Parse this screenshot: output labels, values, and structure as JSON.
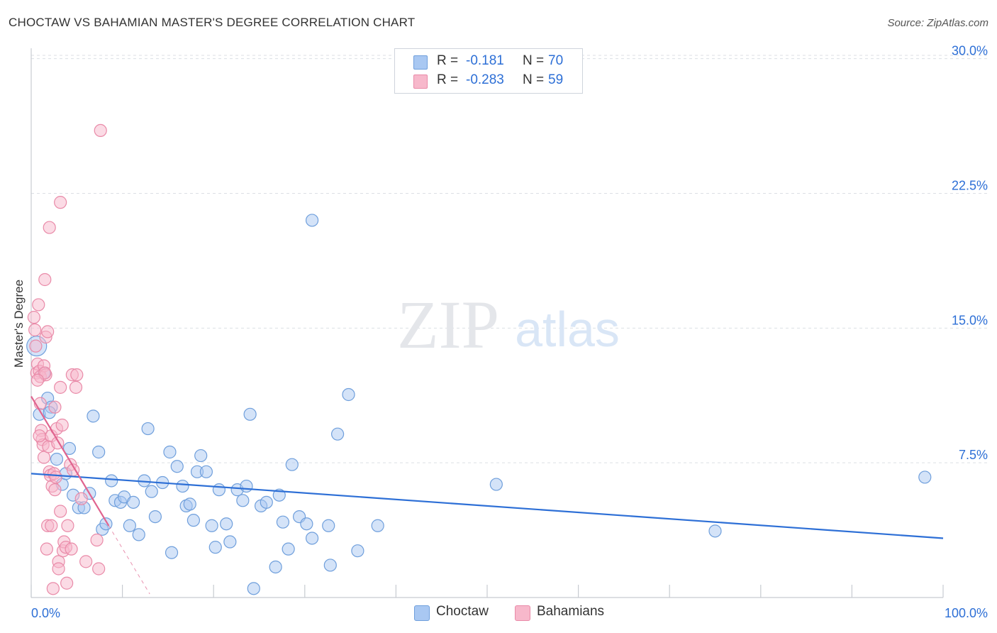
{
  "header": {
    "title": "CHOCTAW VS BAHAMIAN MASTER'S DEGREE CORRELATION CHART",
    "source": "Source: ZipAtlas.com"
  },
  "legend": {
    "series": [
      {
        "name": "Choctaw",
        "r_label": "R =",
        "r_value": "-0.181",
        "n_label": "N =",
        "n_value": "70"
      },
      {
        "name": "Bahamians",
        "r_label": "R =",
        "r_value": "-0.283",
        "n_label": "N =",
        "n_value": "59"
      }
    ]
  },
  "watermark": {
    "zip": "ZIP",
    "atlas": "atlas"
  },
  "colors": {
    "choctaw_fill": "#a9c8f2",
    "choctaw_stroke": "#6f9fdc",
    "choctaw_line": "#2d6fd6",
    "bahamians_fill": "#f7b8cb",
    "bahamians_stroke": "#e98aa8",
    "bahamians_line": "#e0648f",
    "axis_label": "#2d6fd6",
    "grid": "#dcdfe4"
  },
  "chart_data": {
    "type": "scatter",
    "title": "CHOCTAW VS BAHAMIAN MASTER'S DEGREE CORRELATION CHART",
    "xlabel": "",
    "ylabel": "Master's Degree",
    "xlim": [
      0,
      100
    ],
    "ylim": [
      0,
      30.5
    ],
    "x_tick_labels": [
      {
        "value": 0,
        "label": "0.0%"
      },
      {
        "value": 100,
        "label": "100.0%"
      }
    ],
    "y_tick_labels": [
      {
        "value": 7.5,
        "label": "7.5%"
      },
      {
        "value": 15,
        "label": "15.0%"
      },
      {
        "value": 22.5,
        "label": "22.5%"
      },
      {
        "value": 30,
        "label": "30.0%"
      }
    ],
    "grid": true,
    "legend_position": "top-center",
    "series": [
      {
        "name": "Choctaw",
        "trend": {
          "x": [
            0,
            100
          ],
          "y": [
            6.9,
            3.3
          ]
        },
        "points": [
          [
            0.6,
            14.0
          ],
          [
            0.9,
            10.2
          ],
          [
            1.8,
            11.1
          ],
          [
            2.2,
            10.6
          ],
          [
            2.8,
            7.7
          ],
          [
            3.4,
            6.3
          ],
          [
            3.8,
            6.9
          ],
          [
            4.2,
            8.3
          ],
          [
            4.6,
            5.7
          ],
          [
            5.2,
            5.0
          ],
          [
            5.8,
            5.0
          ],
          [
            6.4,
            5.8
          ],
          [
            6.8,
            10.1
          ],
          [
            7.4,
            8.1
          ],
          [
            7.8,
            3.8
          ],
          [
            8.2,
            4.1
          ],
          [
            8.8,
            6.5
          ],
          [
            9.2,
            5.4
          ],
          [
            9.8,
            5.3
          ],
          [
            10.2,
            5.6
          ],
          [
            10.8,
            4.0
          ],
          [
            11.2,
            5.3
          ],
          [
            11.8,
            3.5
          ],
          [
            12.4,
            6.5
          ],
          [
            12.8,
            9.4
          ],
          [
            13.2,
            5.9
          ],
          [
            13.6,
            4.5
          ],
          [
            14.4,
            6.4
          ],
          [
            15.2,
            8.1
          ],
          [
            15.4,
            2.5
          ],
          [
            16.0,
            7.3
          ],
          [
            16.6,
            6.2
          ],
          [
            17.0,
            5.1
          ],
          [
            17.4,
            5.2
          ],
          [
            17.8,
            4.3
          ],
          [
            18.2,
            7.0
          ],
          [
            18.6,
            7.9
          ],
          [
            19.2,
            7.0
          ],
          [
            19.8,
            4.0
          ],
          [
            20.2,
            2.8
          ],
          [
            20.6,
            6.0
          ],
          [
            21.4,
            4.1
          ],
          [
            21.8,
            3.1
          ],
          [
            22.6,
            6.0
          ],
          [
            23.2,
            5.4
          ],
          [
            23.6,
            6.2
          ],
          [
            24.0,
            10.2
          ],
          [
            24.4,
            0.5
          ],
          [
            25.2,
            5.1
          ],
          [
            25.8,
            5.3
          ],
          [
            26.8,
            1.7
          ],
          [
            27.2,
            5.7
          ],
          [
            27.6,
            4.2
          ],
          [
            28.2,
            2.7
          ],
          [
            28.6,
            7.4
          ],
          [
            29.4,
            4.5
          ],
          [
            30.2,
            4.1
          ],
          [
            30.8,
            3.3
          ],
          [
            30.8,
            21.0
          ],
          [
            32.6,
            4.0
          ],
          [
            32.8,
            1.8
          ],
          [
            33.6,
            9.1
          ],
          [
            34.8,
            11.3
          ],
          [
            35.8,
            2.6
          ],
          [
            38.0,
            4.0
          ],
          [
            51.0,
            6.3
          ],
          [
            75.0,
            3.7
          ],
          [
            98.0,
            6.7
          ],
          [
            1.4,
            12.5
          ],
          [
            2.0,
            10.3
          ]
        ]
      },
      {
        "name": "Bahamians",
        "trend": {
          "x": [
            0,
            8.5
          ],
          "y": [
            11.2,
            4.0
          ],
          "dashed_extension": {
            "x": [
              8.5,
              13.0
            ],
            "y": [
              4.0,
              0.2
            ]
          }
        },
        "points": [
          [
            0.3,
            15.6
          ],
          [
            0.4,
            14.9
          ],
          [
            0.5,
            14.0
          ],
          [
            0.6,
            12.5
          ],
          [
            0.7,
            13.0
          ],
          [
            0.8,
            16.3
          ],
          [
            0.9,
            12.6
          ],
          [
            1.0,
            12.3
          ],
          [
            1.0,
            10.8
          ],
          [
            1.1,
            9.3
          ],
          [
            1.2,
            8.8
          ],
          [
            1.3,
            8.5
          ],
          [
            1.4,
            7.8
          ],
          [
            1.4,
            12.9
          ],
          [
            1.5,
            17.7
          ],
          [
            1.6,
            14.5
          ],
          [
            1.6,
            12.4
          ],
          [
            1.7,
            2.7
          ],
          [
            1.8,
            4.0
          ],
          [
            1.9,
            8.4
          ],
          [
            2.0,
            7.0
          ],
          [
            2.0,
            20.6
          ],
          [
            2.1,
            6.8
          ],
          [
            2.2,
            9.0
          ],
          [
            2.2,
            4.0
          ],
          [
            2.3,
            6.2
          ],
          [
            2.4,
            0.5
          ],
          [
            2.5,
            6.9
          ],
          [
            2.6,
            10.6
          ],
          [
            2.6,
            6.0
          ],
          [
            2.7,
            6.7
          ],
          [
            2.8,
            9.4
          ],
          [
            3.0,
            2.0
          ],
          [
            3.0,
            1.6
          ],
          [
            3.2,
            4.8
          ],
          [
            3.2,
            11.7
          ],
          [
            3.2,
            22.0
          ],
          [
            3.4,
            9.6
          ],
          [
            3.5,
            2.6
          ],
          [
            3.6,
            3.1
          ],
          [
            3.8,
            2.8
          ],
          [
            3.9,
            0.8
          ],
          [
            4.0,
            4.0
          ],
          [
            4.3,
            7.4
          ],
          [
            4.4,
            2.7
          ],
          [
            4.5,
            12.4
          ],
          [
            4.6,
            7.1
          ],
          [
            5.0,
            12.4
          ],
          [
            5.5,
            5.5
          ],
          [
            6.0,
            2.0
          ],
          [
            7.2,
            3.2
          ],
          [
            7.4,
            1.6
          ],
          [
            7.6,
            26.0
          ],
          [
            0.9,
            9.0
          ],
          [
            1.5,
            12.5
          ],
          [
            1.8,
            14.8
          ],
          [
            2.9,
            8.6
          ],
          [
            0.7,
            12.1
          ],
          [
            4.9,
            11.7
          ]
        ]
      }
    ]
  }
}
